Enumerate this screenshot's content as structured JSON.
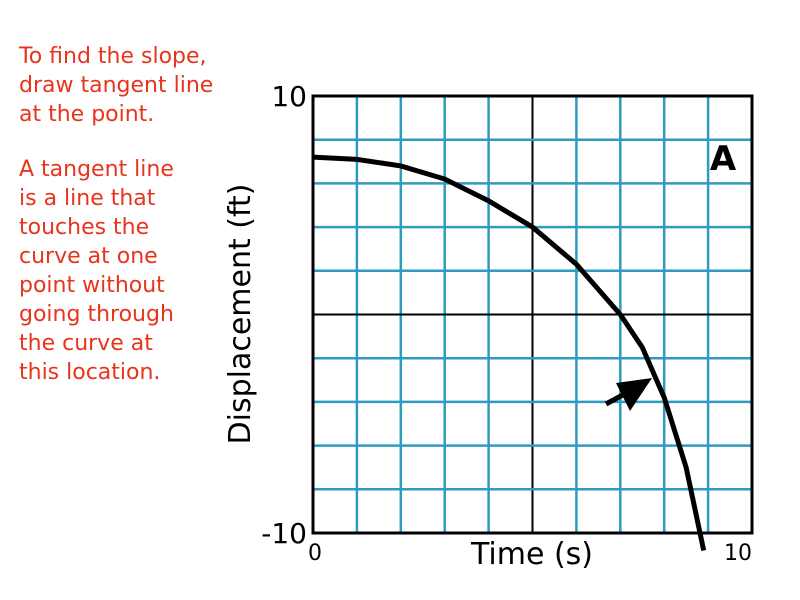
{
  "notes": [
    [
      "To find the slope,",
      "draw tangent line",
      "at the point."
    ],
    [
      "A tangent line",
      "is a line that",
      "touches the",
      "curve at one",
      "point without",
      "going through",
      "the curve at",
      "this location."
    ]
  ],
  "chart_data": {
    "type": "line",
    "x_label": "Time (s)",
    "y_label": "Displacement (ft)",
    "label": "A",
    "x": [
      0,
      1,
      2,
      3,
      4,
      5,
      6,
      7,
      7.5,
      8,
      8.5,
      8.9
    ],
    "series": [
      {
        "color": "#000000",
        "values": [
          7.2,
          7.1,
          6.8,
          6.2,
          5.2,
          4,
          2.3,
          0,
          -1.5,
          -3.8,
          -7,
          -10.8
        ]
      }
    ],
    "xlim": [
      0,
      10
    ],
    "ylim": [
      -10,
      10
    ],
    "xticks": [
      0,
      10
    ],
    "yticks": [
      -10,
      10
    ],
    "xgrid": [
      1,
      2,
      3,
      4,
      5,
      6,
      7,
      8,
      9
    ],
    "ygrid": [
      -8,
      -6,
      -4,
      -2,
      0,
      2,
      4,
      6,
      8
    ],
    "major_x": 5,
    "major_y": 0,
    "grid": true,
    "grid_color": "#2e9cc0"
  }
}
